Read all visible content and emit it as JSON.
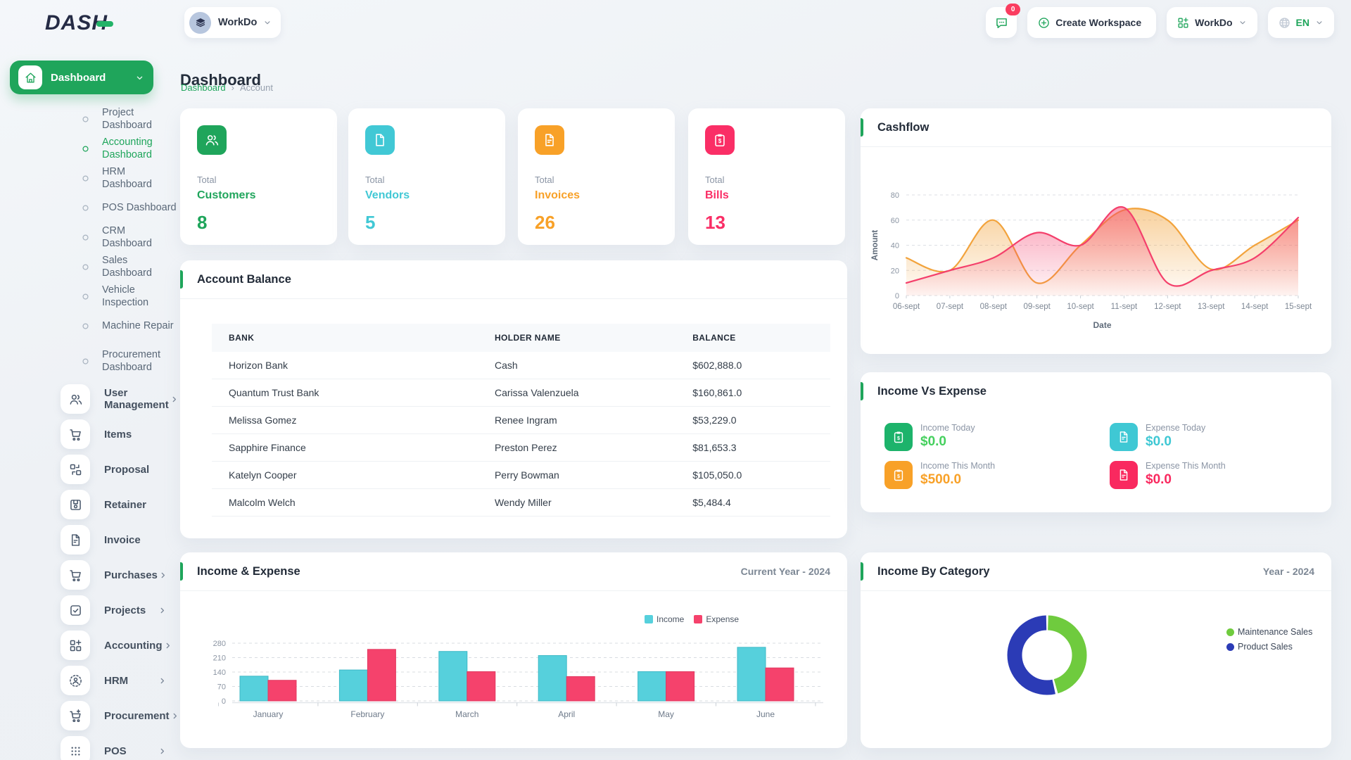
{
  "brand": {
    "logo_text": "DASH"
  },
  "header": {
    "workspace_label": "WorkDo",
    "chat_badge": "0",
    "create_workspace_label": "Create Workspace",
    "app_switcher_label": "WorkDo",
    "language": "EN"
  },
  "page": {
    "title": "Dashboard",
    "breadcrumb": {
      "link": "Dashboard",
      "separator": "›",
      "current": "Account"
    }
  },
  "sidebar": {
    "dashboard_label": "Dashboard",
    "sub_items": [
      {
        "label": "Project Dashboard",
        "active": false
      },
      {
        "label": "Accounting Dashboard",
        "active": true
      },
      {
        "label": "HRM Dashboard",
        "active": false
      },
      {
        "label": "POS Dashboard",
        "active": false
      },
      {
        "label": "CRM Dashboard",
        "active": false
      },
      {
        "label": "Sales Dashboard",
        "active": false
      },
      {
        "label": "Vehicle Inspection",
        "active": false
      },
      {
        "label": "Machine Repair",
        "active": false
      },
      {
        "label": "Procurement Dashboard",
        "active": false,
        "two_line": true
      }
    ],
    "items": [
      {
        "label": "User Management",
        "icon": "people",
        "chevron": true
      },
      {
        "label": "Items",
        "icon": "cart",
        "chevron": false
      },
      {
        "label": "Proposal",
        "icon": "swap",
        "chevron": false
      },
      {
        "label": "Retainer",
        "icon": "save",
        "chevron": false
      },
      {
        "label": "Invoice",
        "icon": "invoice",
        "chevron": false
      },
      {
        "label": "Purchases",
        "icon": "cart",
        "chevron": true
      },
      {
        "label": "Projects",
        "icon": "checkbox",
        "chevron": true
      },
      {
        "label": "Accounting",
        "icon": "grid-plus",
        "chevron": true
      },
      {
        "label": "HRM",
        "icon": "hrm-user",
        "chevron": true
      },
      {
        "label": "Procurement",
        "icon": "cart-plus",
        "chevron": true
      },
      {
        "label": "POS",
        "icon": "dots-grid",
        "chevron": true
      }
    ]
  },
  "stat_cards": [
    {
      "top": "Total",
      "name": "Customers",
      "value": "8",
      "color": "#1fa55b",
      "icon": "people"
    },
    {
      "top": "Total",
      "name": "Vendors",
      "value": "5",
      "color": "#41c8d5",
      "icon": "file-text"
    },
    {
      "top": "Total",
      "name": "Invoices",
      "value": "26",
      "color": "#f8a128",
      "icon": "invoice"
    },
    {
      "top": "Total",
      "name": "Bills",
      "value": "13",
      "color": "#fa2e66",
      "icon": "clipboard-dollar"
    }
  ],
  "panels": {
    "cashflow": {
      "title": "Cashflow"
    },
    "account_balance": {
      "title": "Account Balance",
      "columns": [
        "BANK",
        "HOLDER NAME",
        "BALANCE"
      ],
      "rows": [
        [
          "Horizon Bank",
          "Cash",
          "$602,888.0"
        ],
        [
          "Quantum Trust Bank",
          "Carissa Valenzuela",
          "$160,861.0"
        ],
        [
          "Melissa Gomez",
          "Renee Ingram",
          "$53,229.0"
        ],
        [
          "Sapphire Finance",
          "Preston Perez",
          "$81,653.3"
        ],
        [
          "Katelyn Cooper",
          "Perry Bowman",
          "$105,050.0"
        ],
        [
          "Malcolm Welch",
          "Wendy Miller",
          "$5,484.4"
        ]
      ]
    },
    "income_vs_expense": {
      "title": "Income Vs Expense",
      "items": [
        {
          "label": "Income Today",
          "value": "$0.0",
          "color": "#1db36b",
          "value_color": "#45d05e",
          "icon": "clipboard-dollar"
        },
        {
          "label": "Expense Today",
          "value": "$0.0",
          "color": "#3fc8d4",
          "value_color": "#3fc8d4",
          "icon": "invoice"
        },
        {
          "label": "Income This Month",
          "value": "$500.0",
          "color": "#f8a128",
          "value_color": "#f8a128",
          "icon": "clipboard-dollar"
        },
        {
          "label": "Expense This Month",
          "value": "$0.0",
          "color": "#f9295f",
          "value_color": "#f9295f",
          "icon": "invoice"
        }
      ]
    },
    "income_expense": {
      "title": "Income & Expense",
      "right_label": "Current Year - 2024"
    },
    "income_by_category": {
      "title": "Income By Category",
      "right_label": "Year - 2024"
    }
  },
  "chart_data": [
    {
      "id": "cashflow",
      "type": "area",
      "title": "Cashflow",
      "x": [
        "06-sept",
        "07-sept",
        "08-sept",
        "09-sept",
        "10-sept",
        "11-sept",
        "12-sept",
        "13-sept",
        "14-sept",
        "15-sept"
      ],
      "xlabel": "Date",
      "ylabel": "Amount",
      "ylim": [
        0,
        80
      ],
      "yticks": [
        0,
        20,
        40,
        60,
        80
      ],
      "grid": true,
      "series": [
        {
          "name": "inflow",
          "color": "#f2a33c",
          "values": [
            30,
            20,
            60,
            10,
            40,
            68,
            60,
            21,
            40,
            60
          ]
        },
        {
          "name": "outflow",
          "color": "#f43f6b",
          "values": [
            10,
            20,
            30,
            50,
            40,
            70,
            10,
            20,
            30,
            62
          ]
        }
      ]
    },
    {
      "id": "income-expense",
      "type": "bar",
      "title": "Income & Expense",
      "categories": [
        "January",
        "February",
        "March",
        "April",
        "May",
        "June"
      ],
      "ylim": [
        0,
        280
      ],
      "yticks": [
        0,
        70,
        140,
        210,
        280
      ],
      "legend_position": "top-right",
      "series": [
        {
          "name": "Income",
          "color": "#56d0dc",
          "edge": "#3db9c6",
          "values": [
            120,
            150,
            240,
            220,
            142,
            260
          ]
        },
        {
          "name": "Expense",
          "color": "#f5426c",
          "edge": "#e13a61",
          "values": [
            100,
            250,
            142,
            118,
            142,
            160
          ]
        }
      ]
    },
    {
      "id": "income-by-category",
      "type": "donut",
      "title": "Income By Category",
      "slices": [
        {
          "label": "Maintenance Sales",
          "color": "#6fcb3e",
          "percent": 46
        },
        {
          "label": "Product Sales",
          "color": "#2b3bb6",
          "percent": 54
        }
      ]
    }
  ],
  "colors": {
    "primary": "#1fa55b",
    "badge": "#fa3d60"
  }
}
